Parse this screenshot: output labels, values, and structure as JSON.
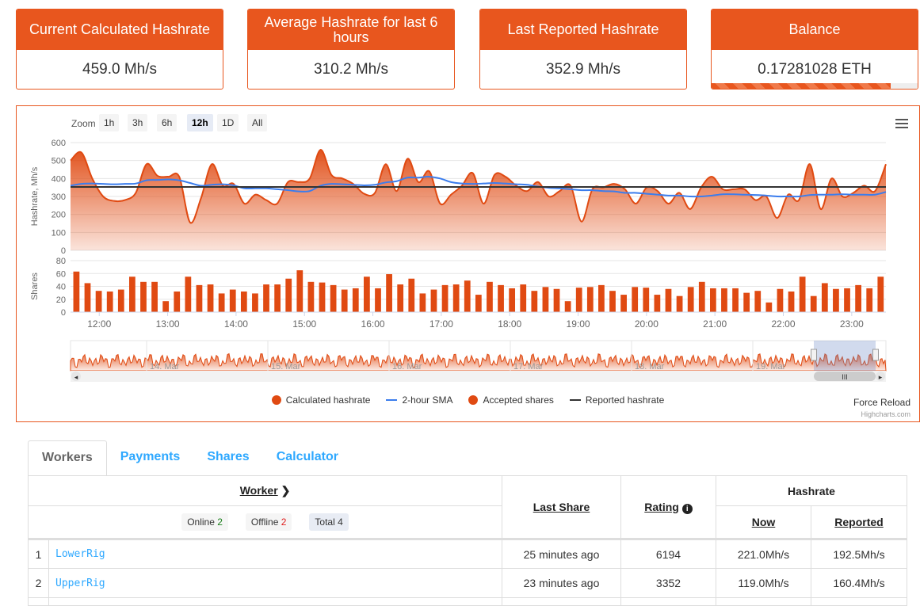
{
  "cards": [
    {
      "title": "Current Calculated Hashrate",
      "value": "459.0 Mh/s"
    },
    {
      "title": "Average Hashrate for last 6 hours",
      "value": "310.2 Mh/s"
    },
    {
      "title": "Last Reported Hashrate",
      "value": "352.9 Mh/s"
    },
    {
      "title": "Balance",
      "value": "0.17281028 ETH",
      "progress": 0.87
    }
  ],
  "zoom": {
    "label": "Zoom",
    "buttons": [
      "1h",
      "3h",
      "6h",
      "12h",
      "1D",
      "All"
    ],
    "selected": "12h"
  },
  "colors": {
    "accent": "#e8561e",
    "sma": "#3b7ded",
    "reported": "#333333",
    "link": "#2ea8ff"
  },
  "chart_data": {
    "type": "area",
    "x_start_hour": 11.58,
    "x_end_hour": 23.5,
    "x_ticks": [
      "12:00",
      "13:00",
      "14:00",
      "15:00",
      "16:00",
      "17:00",
      "18:00",
      "19:00",
      "20:00",
      "21:00",
      "22:00",
      "23:00"
    ],
    "hashrate": {
      "ylabel": "Hashrate, Mh/s",
      "ylim": [
        0,
        600
      ],
      "yticks": [
        "0",
        "100",
        "200",
        "300",
        "400",
        "500",
        "600"
      ],
      "calculated": [
        500,
        545,
        400,
        300,
        275,
        280,
        320,
        480,
        415,
        410,
        410,
        155,
        290,
        480,
        360,
        370,
        260,
        310,
        280,
        260,
        380,
        380,
        400,
        560,
        420,
        400,
        370,
        315,
        320,
        480,
        330,
        510,
        380,
        440,
        260,
        310,
        360,
        430,
        260,
        420,
        410,
        360,
        330,
        380,
        300,
        330,
        360,
        160,
        340,
        350,
        370,
        340,
        260,
        350,
        330,
        260,
        320,
        230,
        350,
        410,
        340,
        340,
        340,
        280,
        300,
        180,
        310,
        280,
        480,
        230,
        400,
        300,
        320,
        360,
        330,
        480
      ],
      "sma": [
        360,
        370,
        372,
        370,
        368,
        370,
        372,
        390,
        392,
        395,
        390,
        375,
        360,
        365,
        368,
        362,
        345,
        345,
        345,
        340,
        335,
        328,
        330,
        360,
        370,
        368,
        365,
        362,
        365,
        378,
        385,
        405,
        405,
        410,
        400,
        380,
        372,
        370,
        372,
        375,
        372,
        368,
        365,
        355,
        348,
        345,
        340,
        335,
        335,
        330,
        328,
        320,
        320,
        315,
        310,
        305,
        305,
        300,
        300,
        305,
        312,
        312,
        310,
        308,
        305,
        300,
        300,
        300,
        308,
        310,
        310,
        312,
        310,
        310,
        310,
        325
      ],
      "reported": 352.9
    },
    "shares": {
      "ylabel": "Shares",
      "ylim": [
        0,
        80
      ],
      "yticks": [
        "0",
        "20",
        "40",
        "60",
        "80"
      ],
      "values": [
        63,
        45,
        33,
        32,
        35,
        55,
        47,
        47,
        17,
        32,
        55,
        42,
        43,
        29,
        35,
        32,
        29,
        43,
        43,
        52,
        65,
        47,
        46,
        42,
        35,
        37,
        55,
        37,
        59,
        43,
        52,
        29,
        35,
        42,
        43,
        49,
        27,
        47,
        42,
        37,
        43,
        33,
        39,
        36,
        17,
        38,
        39,
        42,
        33,
        27,
        39,
        38,
        27,
        36,
        25,
        39,
        47,
        37,
        37,
        37,
        30,
        33,
        15,
        36,
        32,
        55,
        25,
        45,
        36,
        37,
        42,
        37,
        55
      ]
    },
    "navigator_labels": [
      "14. Mar",
      "15. Mar",
      "16. Mar",
      "17. Mar",
      "18. Mar",
      "19. Mar"
    ],
    "legend": [
      "Calculated hashrate",
      "2-hour SMA",
      "Accepted shares",
      "Reported hashrate"
    ]
  },
  "force_reload": "Force Reload",
  "credits": "Highcharts.com",
  "tabs": [
    "Workers",
    "Payments",
    "Shares",
    "Calculator"
  ],
  "table": {
    "worker_header": "Worker",
    "last_share_header": "Last Share",
    "rating_header": "Rating",
    "hashrate_header": "Hashrate",
    "now_header": "Now",
    "reported_header": "Reported",
    "online_label": "Online",
    "online_count": "2",
    "offline_label": "Offline",
    "offline_count": "2",
    "total_label": "Total",
    "total_count": "4",
    "rows": [
      {
        "idx": "1",
        "name": "LowerRig",
        "last_share": "25 minutes ago",
        "rating": "6194",
        "now": "221.0Mh/s",
        "reported": "192.5Mh/s"
      },
      {
        "idx": "2",
        "name": "UpperRig",
        "last_share": "23 minutes ago",
        "rating": "3352",
        "now": "119.0Mh/s",
        "reported": "160.4Mh/s"
      }
    ]
  }
}
